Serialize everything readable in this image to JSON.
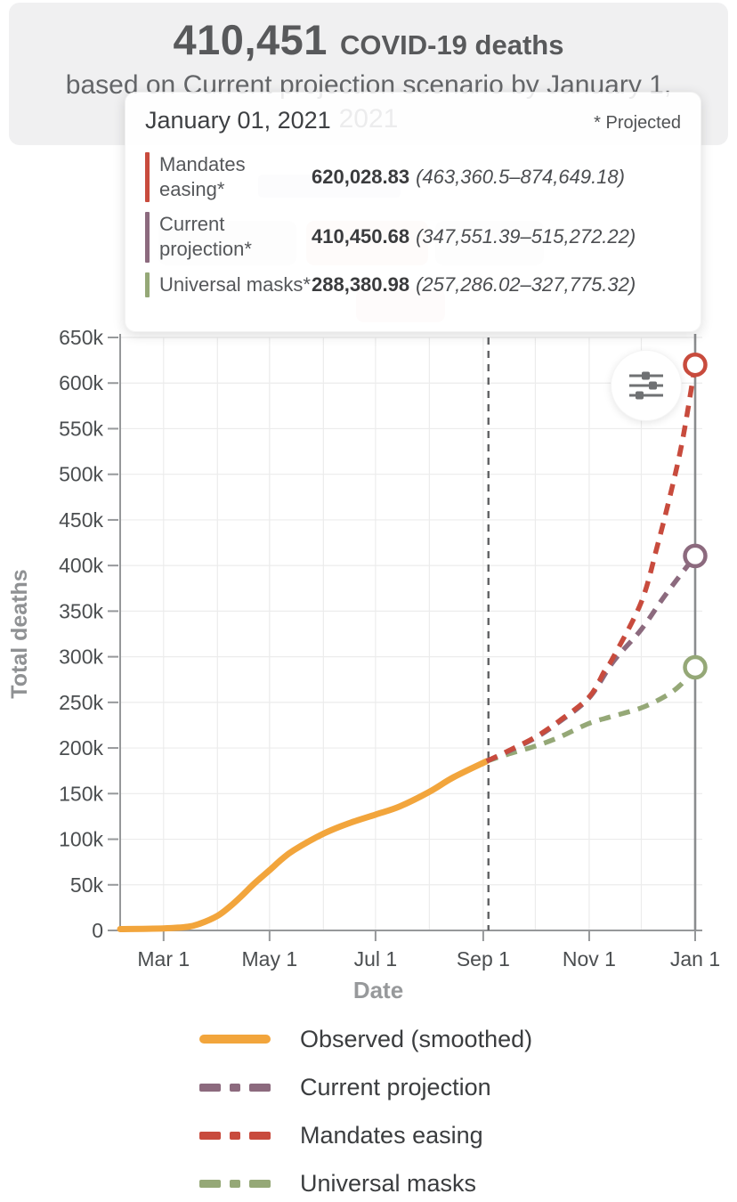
{
  "header": {
    "count": "410,451",
    "count_suffix": "COVID-19 deaths",
    "subtitle_line1": "based on Current projection scenario by January 1,",
    "subtitle_line2": "2021"
  },
  "tooltip": {
    "title": "January 01, 2021",
    "note": "* Projected",
    "rows": [
      {
        "label": "Mandates easing*",
        "value": "620,028.83",
        "range": "(463,360.5–874,649.18)",
        "color": "#c84b3d"
      },
      {
        "label": "Current projection*",
        "value": "410,450.68",
        "range": "(347,551.39–515,272.22)",
        "color": "#8c6a7e"
      },
      {
        "label": "Universal masks*",
        "value": "288,380.98",
        "range": "(257,286.02–327,775.32)",
        "color": "#95a877"
      }
    ]
  },
  "controls": {
    "settings_button": "chart-settings"
  },
  "chart_data": {
    "type": "line",
    "xlabel": "Date",
    "ylabel": "Total deaths",
    "x_domain": [
      "2020-02-05",
      "2021-01-01"
    ],
    "x_ticks": [
      {
        "date": "2020-03-01",
        "label": "Mar 1"
      },
      {
        "date": "2020-05-01",
        "label": "May 1"
      },
      {
        "date": "2020-07-01",
        "label": "Jul 1"
      },
      {
        "date": "2020-09-01",
        "label": "Sep 1"
      },
      {
        "date": "2020-11-01",
        "label": "Nov 1"
      },
      {
        "date": "2021-01-01",
        "label": "Jan 1"
      }
    ],
    "x_grid_dates": [
      "2020-03-01",
      "2020-04-01",
      "2020-05-01",
      "2020-06-01",
      "2020-07-01",
      "2020-08-01",
      "2020-09-01",
      "2020-10-01",
      "2020-11-01",
      "2020-12-01",
      "2021-01-01"
    ],
    "y_ticks": [
      {
        "value": 0,
        "label": "0"
      },
      {
        "value": 50000,
        "label": "50k"
      },
      {
        "value": 100000,
        "label": "100k"
      },
      {
        "value": 150000,
        "label": "150k"
      },
      {
        "value": 200000,
        "label": "200k"
      },
      {
        "value": 250000,
        "label": "250k"
      },
      {
        "value": 300000,
        "label": "300k"
      },
      {
        "value": 350000,
        "label": "350k"
      },
      {
        "value": 400000,
        "label": "400k"
      },
      {
        "value": 450000,
        "label": "450k"
      },
      {
        "value": 500000,
        "label": "500k"
      },
      {
        "value": 550000,
        "label": "550k"
      },
      {
        "value": 600000,
        "label": "600k"
      },
      {
        "value": 650000,
        "label": "650k"
      }
    ],
    "ylim": [
      0,
      650000
    ],
    "grid": true,
    "projection_start_date": "2020-09-04",
    "hover_date": "2021-01-01",
    "series": [
      {
        "name": "Observed (smoothed)",
        "color": "#f2a53c",
        "style": "solid",
        "end_marker": false,
        "points": [
          [
            "2020-02-05",
            1500
          ],
          [
            "2020-03-01",
            2200
          ],
          [
            "2020-03-15",
            4000
          ],
          [
            "2020-03-22",
            7500
          ],
          [
            "2020-04-01",
            16000
          ],
          [
            "2020-04-08",
            26000
          ],
          [
            "2020-04-15",
            38000
          ],
          [
            "2020-04-22",
            51000
          ],
          [
            "2020-05-01",
            66000
          ],
          [
            "2020-05-08",
            78000
          ],
          [
            "2020-05-15",
            88000
          ],
          [
            "2020-06-01",
            106000
          ],
          [
            "2020-06-15",
            117000
          ],
          [
            "2020-07-01",
            127000
          ],
          [
            "2020-07-15",
            136000
          ],
          [
            "2020-08-01",
            152000
          ],
          [
            "2020-08-15",
            168000
          ],
          [
            "2020-09-03",
            185500
          ]
        ]
      },
      {
        "name": "Universal masks",
        "color": "#95a877",
        "style": "dashed",
        "end_marker": true,
        "points": [
          [
            "2020-09-03",
            185500
          ],
          [
            "2020-09-15",
            193000
          ],
          [
            "2020-10-01",
            202000
          ],
          [
            "2020-10-15",
            212000
          ],
          [
            "2020-11-01",
            227000
          ],
          [
            "2020-11-15",
            235000
          ],
          [
            "2020-12-01",
            244000
          ],
          [
            "2020-12-15",
            257000
          ],
          [
            "2020-12-24",
            270000
          ],
          [
            "2021-01-01",
            288380.98
          ]
        ]
      },
      {
        "name": "Current projection",
        "color": "#8c6a7e",
        "style": "dashed",
        "end_marker": true,
        "points": [
          [
            "2020-09-03",
            185500
          ],
          [
            "2020-09-15",
            196000
          ],
          [
            "2020-10-01",
            211000
          ],
          [
            "2020-10-15",
            229000
          ],
          [
            "2020-11-01",
            255000
          ],
          [
            "2020-11-15",
            295000
          ],
          [
            "2020-12-01",
            330000
          ],
          [
            "2020-12-15",
            368000
          ],
          [
            "2021-01-01",
            410450.68
          ]
        ]
      },
      {
        "name": "Mandates easing",
        "color": "#c84b3d",
        "style": "dashed",
        "end_marker": true,
        "points": [
          [
            "2020-09-03",
            185500
          ],
          [
            "2020-09-15",
            196500
          ],
          [
            "2020-10-01",
            212000
          ],
          [
            "2020-10-15",
            230000
          ],
          [
            "2020-11-01",
            256000
          ],
          [
            "2020-11-10",
            285000
          ],
          [
            "2020-11-15",
            300000
          ],
          [
            "2020-12-01",
            360000
          ],
          [
            "2020-12-10",
            420000
          ],
          [
            "2020-12-18",
            480000
          ],
          [
            "2020-12-25",
            540000
          ],
          [
            "2021-01-01",
            620028.83
          ]
        ]
      }
    ],
    "legend": [
      {
        "label": "Observed (smoothed)",
        "color": "#f2a53c",
        "style": "solid"
      },
      {
        "label": "Current projection",
        "color": "#8c6a7e",
        "style": "dashed"
      },
      {
        "label": "Mandates easing",
        "color": "#c84b3d",
        "style": "dashed"
      },
      {
        "label": "Universal masks",
        "color": "#95a877",
        "style": "dashed"
      }
    ],
    "legend_position": "bottom"
  }
}
